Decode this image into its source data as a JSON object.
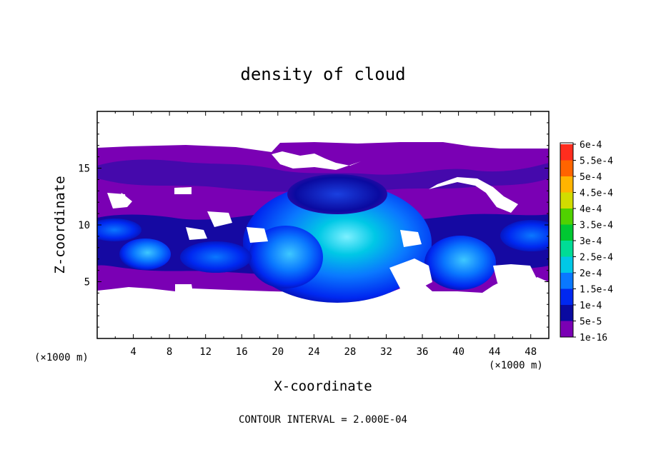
{
  "chart_data": {
    "type": "heatmap",
    "title": "density of cloud",
    "xlabel": "X-coordinate",
    "ylabel": "Z-coordinate",
    "x_unit_left": "(×1000 m)",
    "x_unit_right": "(×1000 m)",
    "footer": "CONTOUR INTERVAL = 2.000E-04",
    "xlim": [
      0,
      50
    ],
    "ylim": [
      0,
      20
    ],
    "xticks": [
      "4",
      "8",
      "12",
      "16",
      "20",
      "24",
      "28",
      "32",
      "36",
      "40",
      "44",
      "48"
    ],
    "yticks": [
      "5",
      "10",
      "15"
    ],
    "grid": false,
    "colorbar": {
      "levels": [
        "1e-16",
        "5e-5",
        "1e-4",
        "1.5e-4",
        "2e-4",
        "2.5e-4",
        "3e-4",
        "3.5e-4",
        "4e-4",
        "4.5e-4",
        "5e-4",
        "5.5e-4",
        "6e-4"
      ],
      "colors": [
        "#7a00b4",
        "#0a0aa0",
        "#0028f0",
        "#0a78ff",
        "#00c8e6",
        "#00dc96",
        "#00c832",
        "#50d200",
        "#d2dc00",
        "#ffb400",
        "#ff6400",
        "#ff2d1e",
        "#ff8a8a"
      ]
    },
    "cloud_layer": {
      "base_z": 4.5,
      "top_z": 16.5,
      "clear_below_z": 4.3,
      "clear_above_z": 17
    },
    "cells": [
      {
        "name": "west-cell-a",
        "x": 5.5,
        "z": 7.5,
        "rx": 2.3,
        "rz": 1.4,
        "peak": "1.5e-4"
      },
      {
        "name": "west-cell-b",
        "x": 13.5,
        "z": 7.2,
        "rx": 3.5,
        "rz": 1.5,
        "peak": "1e-4"
      },
      {
        "name": "central-cell",
        "x": 27,
        "z": 9,
        "rx": 5.3,
        "rz": 4.5,
        "peak": "2e-4"
      },
      {
        "name": "central-west-lobe",
        "x": 20.5,
        "z": 8.2,
        "rx": 3.0,
        "rz": 2.6,
        "peak": "1.5e-4"
      },
      {
        "name": "east-cell",
        "x": 40,
        "z": 7.0,
        "rx": 3.3,
        "rz": 2.6,
        "peak": "1.5e-4"
      },
      {
        "name": "west-edge-band",
        "x": 2.5,
        "z": 9.5,
        "rx": 2.8,
        "rz": 1.2,
        "peak": "1e-4"
      },
      {
        "name": "east-edge-band",
        "x": 47,
        "z": 9.3,
        "rx": 3.5,
        "rz": 1.6,
        "peak": "1e-4"
      }
    ]
  }
}
